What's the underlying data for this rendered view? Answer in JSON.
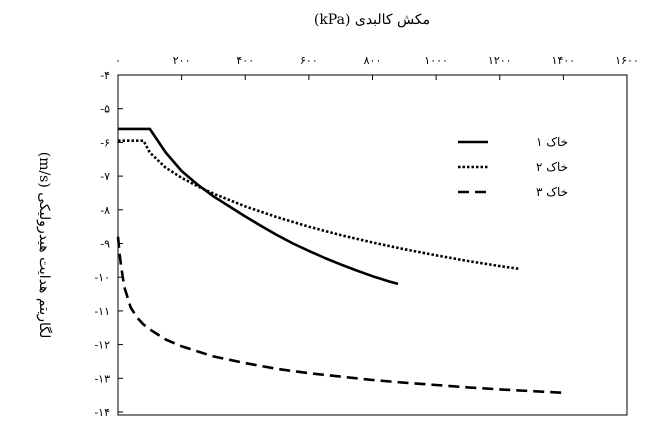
{
  "chart_data": {
    "type": "line",
    "title": "مکش کالبدی (kPa)",
    "xlabel": "مکش کالبدی (kPa)",
    "ylabel": "لگاریتم هدایت هیدرولیکی (m/s)",
    "xlim": [
      0,
      1600
    ],
    "ylim": [
      -14,
      -4
    ],
    "x_ticks": [
      0,
      200,
      400,
      600,
      800,
      1000,
      1200,
      1400,
      1600
    ],
    "x_tick_labels": [
      "۰",
      "۲۰۰",
      "۴۰۰",
      "۶۰۰",
      "۸۰۰",
      "۱۰۰۰",
      "۱۲۰۰",
      "۱۴۰۰",
      "۱۶۰۰"
    ],
    "y_ticks": [
      -4,
      -5,
      -6,
      -7,
      -8,
      -9,
      -10,
      -11,
      -12,
      -13,
      -14
    ],
    "y_tick_labels": [
      "-۴",
      "-۵",
      "-۶",
      "-۷",
      "-۸",
      "-۹",
      "-۱۰",
      "-۱۱",
      "-۱۲",
      "-۱۳",
      "-۱۴"
    ],
    "x_axis_position": "top",
    "grid": false,
    "legend_position": "top-right",
    "series": [
      {
        "name": "خاک ۱",
        "style": "solid",
        "x": [
          0,
          40,
          80,
          100,
          150,
          200,
          250,
          300,
          350,
          400,
          450,
          500,
          550,
          600,
          650,
          700,
          750,
          800,
          850,
          880
        ],
        "y": [
          -5.6,
          -5.6,
          -5.6,
          -5.6,
          -6.3,
          -6.85,
          -7.25,
          -7.6,
          -7.9,
          -8.2,
          -8.48,
          -8.75,
          -9.0,
          -9.22,
          -9.43,
          -9.62,
          -9.8,
          -9.97,
          -10.12,
          -10.2
        ]
      },
      {
        "name": "خاک ۲",
        "style": "dotted",
        "x": [
          0,
          50,
          80,
          100,
          150,
          200,
          250,
          300,
          400,
          500,
          600,
          700,
          800,
          900,
          1000,
          1100,
          1200,
          1260
        ],
        "y": [
          -5.95,
          -5.95,
          -5.95,
          -6.3,
          -6.75,
          -7.05,
          -7.3,
          -7.52,
          -7.9,
          -8.22,
          -8.5,
          -8.75,
          -8.97,
          -9.17,
          -9.35,
          -9.52,
          -9.67,
          -9.75
        ]
      },
      {
        "name": "خاک ۳",
        "style": "dashed",
        "x": [
          0,
          5,
          10,
          20,
          40,
          60,
          80,
          100,
          150,
          200,
          300,
          400,
          500,
          600,
          700,
          800,
          900,
          1000,
          1100,
          1200,
          1300,
          1400
        ],
        "y": [
          -8.8,
          -9.3,
          -9.7,
          -10.3,
          -10.9,
          -11.2,
          -11.4,
          -11.55,
          -11.85,
          -12.05,
          -12.35,
          -12.55,
          -12.72,
          -12.85,
          -12.95,
          -13.05,
          -13.13,
          -13.2,
          -13.27,
          -13.33,
          -13.38,
          -13.43
        ]
      }
    ]
  }
}
